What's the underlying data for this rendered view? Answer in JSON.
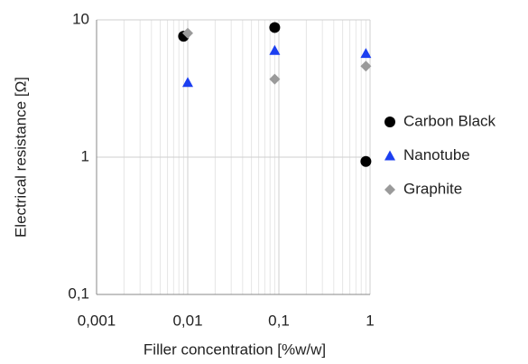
{
  "chart_data": {
    "type": "scatter",
    "x_label": "Filler concentration [%w/w]",
    "y_label": "Electrical resistance [Ω]",
    "xlog": true,
    "ylog": true,
    "grid": true,
    "legend": "right",
    "xlim": [
      0.001,
      1
    ],
    "xticks": [
      {
        "value": 0.001,
        "label": "0,001"
      },
      {
        "value": 0.01,
        "label": "0,01"
      },
      {
        "value": 0.1,
        "label": "0,1"
      },
      1
    ],
    "ylim": [
      0.1,
      10
    ],
    "yticks": [
      {
        "value": 0.1,
        "label": "0,1"
      },
      1,
      10
    ],
    "series": [
      {
        "name": "Carbon Black",
        "color": "#000000",
        "marker": "circle",
        "x": [
          0.009,
          0.09,
          0.9
        ],
        "values": [
          7.6,
          8.8,
          0.93
        ]
      },
      {
        "name": "Nanotube",
        "color": "#1c3ff0",
        "marker": "triangle",
        "x": [
          0.01,
          0.09,
          0.9
        ],
        "values": [
          3.5,
          6,
          5.7
        ]
      },
      {
        "name": "Graphite",
        "color": "#9a9a9a",
        "marker": "diamond",
        "x": [
          0.01,
          0.09,
          0.9
        ],
        "values": [
          8,
          3.7,
          4.6
        ]
      }
    ]
  }
}
